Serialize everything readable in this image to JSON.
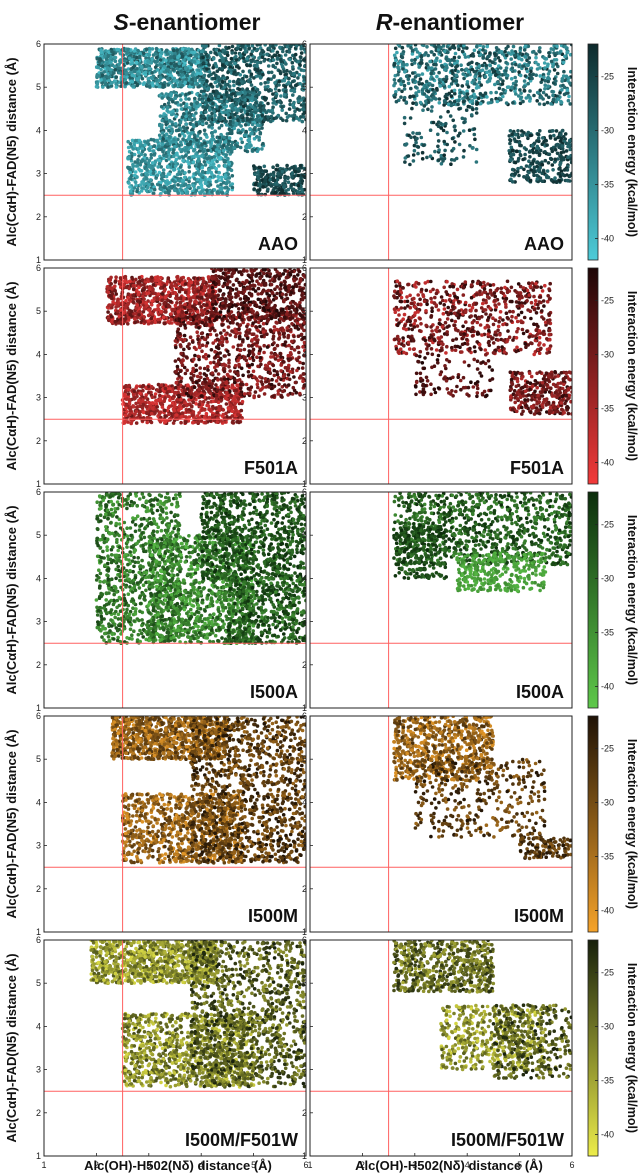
{
  "figure": {
    "column_titles": [
      {
        "italic": "S",
        "rest": "-enantiomer"
      },
      {
        "italic": "R",
        "rest": "-enantiomer"
      }
    ],
    "ylabel": "Alc(CαH)-FAD(N5) distance (Å)",
    "xlabel": "Alc(OH)-H502(Nδ) distance (Å)",
    "colorbar_label": "Interaction energy (kcal/mol)"
  },
  "chart_data": {
    "type": "scatter",
    "x_range": [
      1,
      6
    ],
    "y_range": [
      1,
      6
    ],
    "x_ticks": [
      "1",
      "2",
      "3",
      "4",
      "5",
      "6"
    ],
    "y_ticks": [
      "1",
      "2",
      "3",
      "4",
      "5",
      "6"
    ],
    "reference_lines": {
      "x": 2.5,
      "y": 2.5,
      "color": "#ff6060"
    },
    "colorbar": {
      "range": [
        -42,
        -22
      ],
      "ticks": [
        "-25",
        "-30",
        "-35",
        "-40"
      ]
    },
    "rows": [
      {
        "label": "AAO",
        "colors": {
          "low": "#4ccbd8",
          "high": "#0e2a2c"
        }
      },
      {
        "label": "F501A",
        "colors": {
          "low": "#f23a3a",
          "high": "#1e0606"
        }
      },
      {
        "label": "I500A",
        "colors": {
          "low": "#5ec84a",
          "high": "#0c2d0c"
        }
      },
      {
        "label": "I500M",
        "colors": {
          "low": "#f5a32a",
          "high": "#1e1206"
        }
      },
      {
        "label": "I500M/F501W",
        "colors": {
          "low": "#ecec4a",
          "high": "#17200c"
        }
      }
    ],
    "series": [
      {
        "name": "S-enantiomer",
        "panels": [
          {
            "row": "AAO",
            "clusters": [
              {
                "x": [
                  2.0,
                  4.1
                ],
                "y": [
                  5.0,
                  5.9
                ],
                "n": 900,
                "e": [
                  -40,
                  -27
                ]
              },
              {
                "x": [
                  2.6,
                  4.6
                ],
                "y": [
                  2.5,
                  3.8
                ],
                "n": 700,
                "e": [
                  -40,
                  -30
                ]
              },
              {
                "x": [
                  3.2,
                  5.2
                ],
                "y": [
                  3.5,
                  4.9
                ],
                "n": 600,
                "e": [
                  -38,
                  -27
                ]
              },
              {
                "x": [
                  4.0,
                  6.0
                ],
                "y": [
                  4.2,
                  6.0
                ],
                "n": 800,
                "e": [
                  -34,
                  -23
                ]
              },
              {
                "x": [
                  5.0,
                  6.0
                ],
                "y": [
                  2.5,
                  3.2
                ],
                "n": 220,
                "e": [
                  -30,
                  -22
                ]
              }
            ]
          },
          {
            "row": "F501A",
            "clusters": [
              {
                "x": [
                  2.2,
                  4.3
                ],
                "y": [
                  4.7,
                  5.8
                ],
                "n": 850,
                "e": [
                  -40,
                  -27
                ]
              },
              {
                "x": [
                  2.5,
                  4.8
                ],
                "y": [
                  2.4,
                  3.3
                ],
                "n": 700,
                "e": [
                  -40,
                  -29
                ]
              },
              {
                "x": [
                  3.5,
                  6.0
                ],
                "y": [
                  3.0,
                  5.0
                ],
                "n": 800,
                "e": [
                  -36,
                  -23
                ]
              },
              {
                "x": [
                  4.2,
                  6.0
                ],
                "y": [
                  4.8,
                  6.0
                ],
                "n": 500,
                "e": [
                  -32,
                  -22
                ]
              }
            ]
          },
          {
            "row": "I500A",
            "clusters": [
              {
                "x": [
                  2.0,
                  3.6
                ],
                "y": [
                  2.5,
                  6.0
                ],
                "n": 900,
                "e": [
                  -38,
                  -25
                ]
              },
              {
                "x": [
                  3.0,
                  5.0
                ],
                "y": [
                  2.5,
                  5.0
                ],
                "n": 1100,
                "e": [
                  -40,
                  -26
                ]
              },
              {
                "x": [
                  4.0,
                  6.0
                ],
                "y": [
                  4.0,
                  6.0
                ],
                "n": 800,
                "e": [
                  -32,
                  -22
                ]
              },
              {
                "x": [
                  4.5,
                  6.0
                ],
                "y": [
                  2.5,
                  4.0
                ],
                "n": 500,
                "e": [
                  -34,
                  -22
                ]
              }
            ]
          },
          {
            "row": "I500M",
            "clusters": [
              {
                "x": [
                  2.3,
                  4.5
                ],
                "y": [
                  5.0,
                  6.0
                ],
                "n": 900,
                "e": [
                  -40,
                  -26
                ]
              },
              {
                "x": [
                  2.5,
                  4.8
                ],
                "y": [
                  2.6,
                  4.2
                ],
                "n": 800,
                "e": [
                  -40,
                  -26
                ]
              },
              {
                "x": [
                  3.8,
                  6.0
                ],
                "y": [
                  2.6,
                  6.0
                ],
                "n": 1200,
                "e": [
                  -34,
                  -22
                ]
              }
            ]
          },
          {
            "row": "I500M/F501W",
            "clusters": [
              {
                "x": [
                  1.9,
                  4.3
                ],
                "y": [
                  5.0,
                  6.0
                ],
                "n": 900,
                "e": [
                  -40,
                  -27
                ]
              },
              {
                "x": [
                  2.5,
                  5.0
                ],
                "y": [
                  2.6,
                  4.3
                ],
                "n": 1000,
                "e": [
                  -40,
                  -26
                ]
              },
              {
                "x": [
                  3.8,
                  6.0
                ],
                "y": [
                  2.6,
                  6.0
                ],
                "n": 1100,
                "e": [
                  -34,
                  -22
                ]
              }
            ]
          }
        ]
      },
      {
        "name": "R-enantiomer",
        "panels": [
          {
            "row": "AAO",
            "clusters": [
              {
                "x": [
                  2.6,
                  6.0
                ],
                "y": [
                  4.6,
                  6.0
                ],
                "n": 800,
                "e": [
                  -38,
                  -23
                ]
              },
              {
                "x": [
                  2.8,
                  4.2
                ],
                "y": [
                  3.2,
                  4.8
                ],
                "n": 150,
                "e": [
                  -32,
                  -22
                ]
              },
              {
                "x": [
                  4.8,
                  6.0
                ],
                "y": [
                  2.8,
                  4.0
                ],
                "n": 300,
                "e": [
                  -30,
                  -22
                ]
              }
            ]
          },
          {
            "row": "F501A",
            "clusters": [
              {
                "x": [
                  2.6,
                  5.6
                ],
                "y": [
                  4.0,
                  5.7
                ],
                "n": 700,
                "e": [
                  -38,
                  -23
                ]
              },
              {
                "x": [
                  3.0,
                  4.5
                ],
                "y": [
                  3.0,
                  4.0
                ],
                "n": 100,
                "e": [
                  -32,
                  -22
                ]
              },
              {
                "x": [
                  4.8,
                  6.0
                ],
                "y": [
                  2.6,
                  3.6
                ],
                "n": 300,
                "e": [
                  -36,
                  -23
                ]
              }
            ]
          },
          {
            "row": "I500A",
            "clusters": [
              {
                "x": [
                  2.6,
                  6.0
                ],
                "y": [
                  4.3,
                  6.0
                ],
                "n": 900,
                "e": [
                  -34,
                  -22
                ]
              },
              {
                "x": [
                  3.8,
                  5.5
                ],
                "y": [
                  3.7,
                  4.6
                ],
                "n": 300,
                "e": [
                  -40,
                  -34
                ]
              },
              {
                "x": [
                  2.6,
                  3.6
                ],
                "y": [
                  4.0,
                  5.2
                ],
                "n": 200,
                "e": [
                  -30,
                  -22
                ]
              }
            ]
          },
          {
            "row": "I500M",
            "clusters": [
              {
                "x": [
                  2.6,
                  4.5
                ],
                "y": [
                  4.5,
                  6.0
                ],
                "n": 700,
                "e": [
                  -40,
                  -26
                ]
              },
              {
                "x": [
                  3.0,
                  5.5
                ],
                "y": [
                  3.2,
                  5.0
                ],
                "n": 350,
                "e": [
                  -34,
                  -22
                ]
              },
              {
                "x": [
                  5.0,
                  6.0
                ],
                "y": [
                  2.7,
                  3.2
                ],
                "n": 120,
                "e": [
                  -32,
                  -22
                ]
              }
            ]
          },
          {
            "row": "I500M/F501W",
            "clusters": [
              {
                "x": [
                  2.6,
                  4.5
                ],
                "y": [
                  4.8,
                  6.0
                ],
                "n": 600,
                "e": [
                  -36,
                  -23
                ]
              },
              {
                "x": [
                  3.5,
                  5.5
                ],
                "y": [
                  3.0,
                  4.5
                ],
                "n": 500,
                "e": [
                  -40,
                  -27
                ]
              },
              {
                "x": [
                  4.5,
                  6.0
                ],
                "y": [
                  2.8,
                  4.5
                ],
                "n": 300,
                "e": [
                  -34,
                  -22
                ]
              }
            ]
          }
        ]
      }
    ]
  }
}
